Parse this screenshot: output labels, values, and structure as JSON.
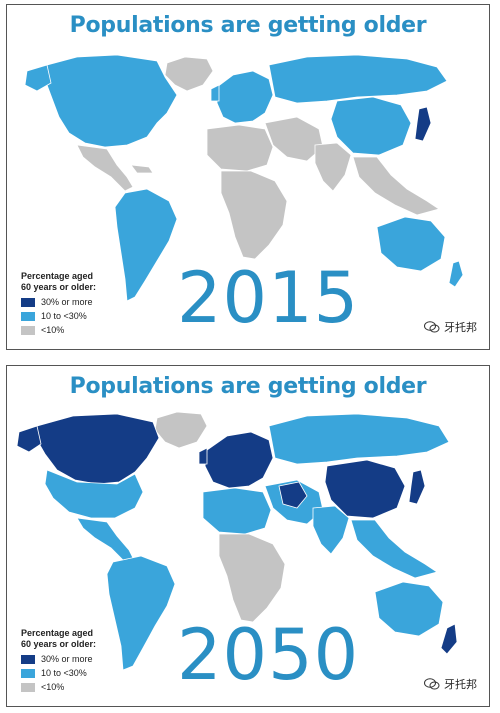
{
  "colors": {
    "high": "#143c86",
    "mid": "#3aa5db",
    "low": "#c4c4c4",
    "ocean": "#ffffff",
    "title": "#2a8fc4"
  },
  "panels": [
    {
      "title": "Populations are getting older",
      "year": "2015",
      "legend": {
        "title_line1": "Percentage aged",
        "title_line2": "60 years or older:",
        "items": [
          {
            "label": "30% or more",
            "level": "high"
          },
          {
            "label": "10 to <30%",
            "level": "mid"
          },
          {
            "label": "<10%",
            "level": "low"
          }
        ]
      },
      "watermark": "牙托邦",
      "regions": {
        "north_america": "mid",
        "greenland": "low",
        "central_america": "low",
        "south_america": "mid",
        "europe": "mid",
        "russia": "mid",
        "middle_east": "low",
        "africa": "low",
        "north_africa": "low",
        "china": "mid",
        "india": "low",
        "southeast_asia": "low",
        "japan": "high",
        "australia": "mid",
        "new_zealand": "mid"
      }
    },
    {
      "title": "Populations are getting older",
      "year": "2050",
      "legend": {
        "title_line1": "Percentage aged",
        "title_line2": "60 years or older:",
        "items": [
          {
            "label": "30% or more",
            "level": "high"
          },
          {
            "label": "10 to <30%",
            "level": "mid"
          },
          {
            "label": "<10%",
            "level": "low"
          }
        ]
      },
      "watermark": "牙托邦",
      "regions": {
        "north_america": "high",
        "greenland": "low",
        "central_america": "mid",
        "south_america": "mid",
        "europe": "high",
        "russia": "mid",
        "middle_east": "mid",
        "africa": "low",
        "north_africa": "mid",
        "china": "high",
        "india": "mid",
        "southeast_asia": "mid",
        "japan": "high",
        "australia": "mid",
        "new_zealand": "high"
      }
    }
  ]
}
